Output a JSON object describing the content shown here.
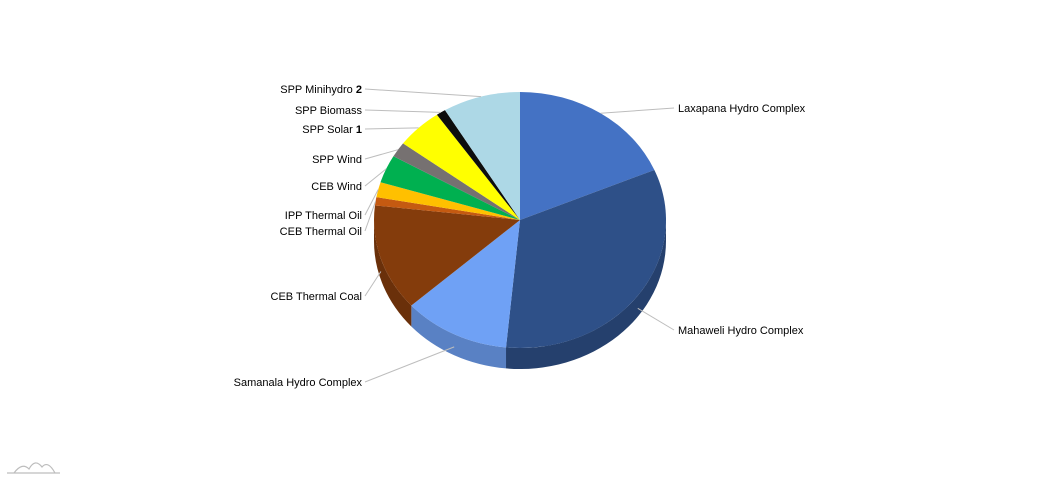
{
  "chart_data": {
    "type": "pie",
    "style": "3d",
    "title": "",
    "legend": "none",
    "slices": [
      {
        "label": "Laxapana Hydro Complex",
        "value": 19.5,
        "color": "#4472c4"
      },
      {
        "label": "Mahaweli Hydro Complex",
        "value": 34.5,
        "color": "#2e5088"
      },
      {
        "label": "Samanala Hydro Complex",
        "value": 12.4,
        "color": "#6fa1f5"
      },
      {
        "label": "CEB Thermal Coal",
        "value": 14.1,
        "color": "#843c0c"
      },
      {
        "label": "CEB Thermal Oil",
        "value": 1.1,
        "color": "#c55a11"
      },
      {
        "label": "IPP Thermal Oil",
        "value": 2.0,
        "color": "#ffc000"
      },
      {
        "label": "CEB Wind",
        "value": 3.7,
        "color": "#00b050"
      },
      {
        "label": "SPP Wind",
        "value": 2.0,
        "color": "#767171"
      },
      {
        "label": "SPP Solar",
        "label_number": "1",
        "value": 5.4,
        "color": "#ffff00"
      },
      {
        "label": "SPP Biomass",
        "value": 1.1,
        "color": "#0d0d0d"
      },
      {
        "label": "SPP Minihydro",
        "label_number": "2",
        "value": 9.0,
        "color": "#add8e6"
      }
    ]
  },
  "logo": {
    "icon": "amcharts-logo-icon",
    "color": "#bdbdbd"
  }
}
